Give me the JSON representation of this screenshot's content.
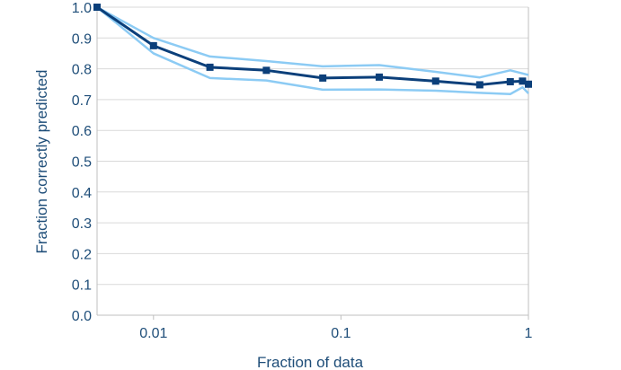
{
  "chart_data": {
    "type": "line",
    "xlabel": "Fraction of data",
    "ylabel": "Fraction correctly predicted",
    "x_scale": "log",
    "xlim": [
      0.005,
      1
    ],
    "ylim": [
      0,
      1
    ],
    "x_ticks": [
      0.01,
      0.1,
      1
    ],
    "x_tick_labels": [
      "0.01",
      "0.1",
      "1"
    ],
    "y_ticks": [
      0,
      0.1,
      0.2,
      0.3,
      0.4,
      0.5,
      0.6,
      0.7,
      0.8,
      0.9,
      1.0
    ],
    "y_tick_labels": [
      "0.0",
      "0.1",
      "0.2",
      "0.3",
      "0.4",
      "0.5",
      "0.6",
      "0.7",
      "0.8",
      "0.9",
      "1.0"
    ],
    "grid": "horizontal",
    "legend": "none",
    "series": [
      {
        "role": "mean",
        "color": "#0b3f7a",
        "marker": "square",
        "x": [
          0.005,
          0.01,
          0.02,
          0.04,
          0.08,
          0.16,
          0.32,
          0.55,
          0.8,
          0.93,
          1.0
        ],
        "y": [
          1.0,
          0.875,
          0.805,
          0.795,
          0.77,
          0.773,
          0.76,
          0.748,
          0.758,
          0.76,
          0.75
        ]
      },
      {
        "role": "upper",
        "color": "#8ccbf4",
        "marker": "none",
        "x": [
          0.005,
          0.01,
          0.02,
          0.04,
          0.08,
          0.16,
          0.32,
          0.55,
          0.8,
          1.0
        ],
        "y": [
          1.0,
          0.9,
          0.84,
          0.825,
          0.808,
          0.812,
          0.79,
          0.772,
          0.795,
          0.78
        ]
      },
      {
        "role": "lower",
        "color": "#8ccbf4",
        "marker": "none",
        "x": [
          0.005,
          0.01,
          0.02,
          0.04,
          0.08,
          0.16,
          0.32,
          0.55,
          0.8,
          0.93,
          1.0
        ],
        "y": [
          1.0,
          0.85,
          0.77,
          0.762,
          0.732,
          0.733,
          0.729,
          0.722,
          0.718,
          0.74,
          0.72
        ]
      }
    ]
  }
}
